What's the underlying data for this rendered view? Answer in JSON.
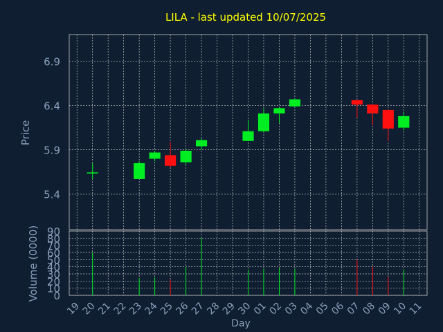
{
  "chart_data": [
    {
      "type": "candlestick",
      "title": "LILA - last updated 10/07/2025",
      "ylabel": "Price",
      "ylim": [
        5.0,
        7.2
      ],
      "yticks": [
        5.4,
        5.9,
        6.4,
        6.9
      ],
      "grid": true,
      "colors": {
        "up": "#00ee22",
        "down": "#ff1010",
        "title": "#ffff00",
        "text": "#8aa0bc",
        "background": "#0f1e30"
      },
      "candles": [
        {
          "date": "20",
          "open": 5.64,
          "high": 5.75,
          "low": 5.57,
          "close": 5.64
        },
        {
          "date": "23",
          "open": 5.57,
          "high": 5.77,
          "low": 5.57,
          "close": 5.75
        },
        {
          "date": "24",
          "open": 5.8,
          "high": 5.89,
          "low": 5.77,
          "close": 5.87
        },
        {
          "date": "25",
          "open": 5.84,
          "high": 5.99,
          "low": 5.7,
          "close": 5.72
        },
        {
          "date": "26",
          "open": 5.76,
          "high": 5.91,
          "low": 5.73,
          "close": 5.89
        },
        {
          "date": "27",
          "open": 5.94,
          "high": 6.03,
          "low": 5.9,
          "close": 6.01
        },
        {
          "date": "30",
          "open": 6.0,
          "high": 6.24,
          "low": 6.0,
          "close": 6.11
        },
        {
          "date": "01",
          "open": 6.11,
          "high": 6.37,
          "low": 6.1,
          "close": 6.31
        },
        {
          "date": "02",
          "open": 6.31,
          "high": 6.38,
          "low": 6.2,
          "close": 6.37
        },
        {
          "date": "03",
          "open": 6.39,
          "high": 6.48,
          "low": 6.38,
          "close": 6.47
        },
        {
          "date": "07",
          "open": 6.46,
          "high": 6.47,
          "low": 6.26,
          "close": 6.41
        },
        {
          "date": "08",
          "open": 6.41,
          "high": 6.42,
          "low": 6.18,
          "close": 6.31
        },
        {
          "date": "09",
          "open": 6.35,
          "high": 6.36,
          "low": 6.0,
          "close": 6.14
        },
        {
          "date": "10",
          "open": 6.15,
          "high": 6.33,
          "low": 6.12,
          "close": 6.28
        }
      ]
    },
    {
      "type": "bar",
      "xlabel": "Day",
      "ylabel": "Volume (0000)",
      "ylim": [
        0,
        90
      ],
      "yticks": [
        0,
        10,
        20,
        30,
        40,
        50,
        60,
        70,
        80,
        90
      ],
      "categories": [
        "19",
        "20",
        "21",
        "22",
        "23",
        "24",
        "25",
        "26",
        "27",
        "28",
        "29",
        "30",
        "01",
        "02",
        "03",
        "04",
        "05",
        "06",
        "07",
        "08",
        "09",
        "10",
        "11"
      ],
      "values": [
        0,
        60,
        0,
        0,
        24,
        25,
        22,
        40,
        80,
        0,
        0,
        36,
        37,
        38,
        37,
        0,
        0,
        0,
        50,
        40,
        26,
        36,
        0
      ],
      "bar_direction": [
        "",
        "flat",
        "",
        "",
        "up",
        "up",
        "down",
        "up",
        "up",
        "",
        "",
        "up",
        "up",
        "up",
        "up",
        "",
        "",
        "",
        "down",
        "down",
        "down",
        "up",
        ""
      ]
    }
  ]
}
